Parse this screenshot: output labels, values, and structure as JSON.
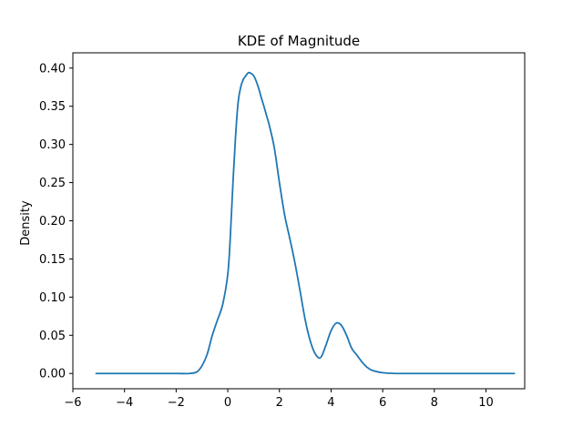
{
  "chart_data": {
    "type": "line",
    "title": "KDE of Magnitude",
    "xlabel": "",
    "ylabel": "Density",
    "xlim": [
      -6,
      11.5
    ],
    "ylim": [
      -0.02,
      0.42
    ],
    "grid": false,
    "x_ticks": [
      -6,
      -4,
      -2,
      0,
      2,
      4,
      6,
      8,
      10
    ],
    "x_tick_labels": [
      "−6",
      "−4",
      "−2",
      "0",
      "2",
      "4",
      "6",
      "8",
      "10"
    ],
    "y_ticks": [
      0.0,
      0.05,
      0.1,
      0.15,
      0.2,
      0.25,
      0.3,
      0.35,
      0.4
    ],
    "y_tick_labels": [
      "0.00",
      "0.05",
      "0.10",
      "0.15",
      "0.20",
      "0.25",
      "0.30",
      "0.35",
      "0.40"
    ],
    "series": [
      {
        "color": "#1f77b4",
        "x": [
          -5.1,
          -4.0,
          -3.0,
          -2.0,
          -1.5,
          -1.2,
          -1.0,
          -0.8,
          -0.6,
          -0.4,
          -0.2,
          0.0,
          0.1,
          0.2,
          0.3,
          0.4,
          0.5,
          0.6,
          0.7,
          0.8,
          0.9,
          1.0,
          1.1,
          1.2,
          1.3,
          1.4,
          1.5,
          1.6,
          1.8,
          2.0,
          2.2,
          2.4,
          2.6,
          2.8,
          3.0,
          3.2,
          3.4,
          3.6,
          3.8,
          4.0,
          4.2,
          4.4,
          4.6,
          4.8,
          5.0,
          5.2,
          5.4,
          5.6,
          6.0,
          6.5,
          7.0,
          8.0,
          9.0,
          10.0,
          11.1
        ],
        "y": [
          0.0,
          0.0,
          0.0,
          0.0,
          0.0,
          0.002,
          0.01,
          0.025,
          0.05,
          0.07,
          0.09,
          0.13,
          0.18,
          0.25,
          0.31,
          0.355,
          0.375,
          0.385,
          0.39,
          0.394,
          0.393,
          0.39,
          0.383,
          0.373,
          0.361,
          0.35,
          0.338,
          0.326,
          0.296,
          0.25,
          0.208,
          0.177,
          0.145,
          0.108,
          0.07,
          0.042,
          0.025,
          0.021,
          0.037,
          0.056,
          0.066,
          0.063,
          0.05,
          0.033,
          0.024,
          0.015,
          0.008,
          0.004,
          0.001,
          0.0,
          0.0,
          0.0,
          0.0,
          0.0,
          0.0
        ]
      }
    ]
  }
}
